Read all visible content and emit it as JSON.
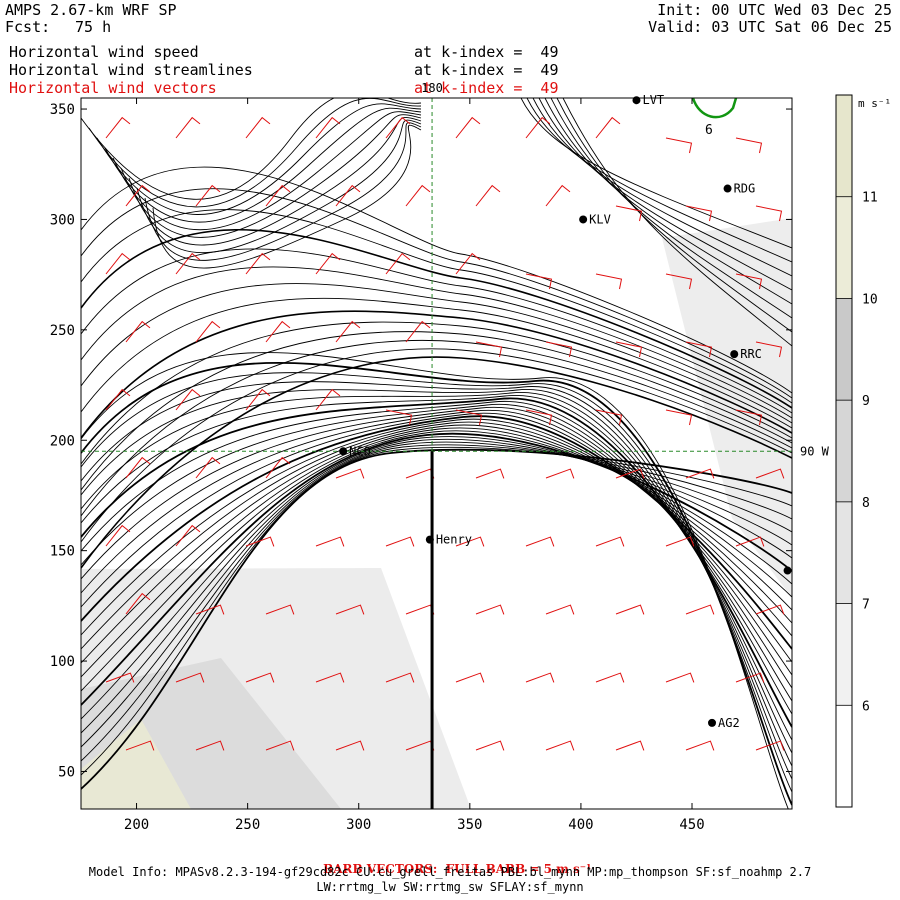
{
  "header": {
    "model": "AMPS 2.67-km WRF SP",
    "fcst_label": "Fcst:",
    "fcst_value": "75 h",
    "init": "Init: 00 UTC Wed 03 Dec 25",
    "valid": "Valid: 03 UTC Sat 06 Dec 25"
  },
  "fields": [
    {
      "name": "Horizontal wind speed",
      "level": "at k-index =  49",
      "color": "#000000"
    },
    {
      "name": "Horizontal wind streamlines",
      "level": "at k-index =  49",
      "color": "#000000"
    },
    {
      "name": "Horizontal wind vectors",
      "level": "at k-index =  49",
      "color": "#e01010"
    }
  ],
  "colorbar": {
    "units": "m s⁻¹",
    "ticks": [
      6,
      7,
      8,
      9,
      10,
      11
    ],
    "range": [
      5,
      12
    ],
    "colors": [
      "#ffffff",
      "#f1f1f1",
      "#e4e4e4",
      "#d6d6d6",
      "#c9c9c9",
      "#ececd8",
      "#e6e6cc"
    ]
  },
  "chart_data": {
    "type": "heatmap",
    "title": "Horizontal wind speed / streamlines / vectors at k-index = 49",
    "xlim": [
      175,
      495
    ],
    "ylim": [
      33,
      355
    ],
    "x_ticks": [
      200,
      250,
      300,
      350,
      400,
      450
    ],
    "y_ticks": [
      50,
      100,
      150,
      200,
      250,
      300,
      350
    ],
    "crosshair": {
      "x": 333,
      "y": 195,
      "x_label": "180",
      "y_label": "90 W"
    },
    "cross_section": {
      "x": 333,
      "y_from": 33,
      "y_to": 195
    },
    "contour_label": "6",
    "stations": [
      {
        "name": "LVT",
        "x": 425,
        "y": 354
      },
      {
        "name": "RDG",
        "x": 466,
        "y": 314
      },
      {
        "name": "KLV",
        "x": 401,
        "y": 300
      },
      {
        "name": "RRC",
        "x": 469,
        "y": 239
      },
      {
        "name": "NCO",
        "x": 293,
        "y": 195
      },
      {
        "name": "Henry",
        "x": 332,
        "y": 155
      },
      {
        "name": "",
        "x": 493,
        "y": 141
      },
      {
        "name": "AG2",
        "x": 459,
        "y": 72
      }
    ]
  },
  "footer": {
    "barb_title": "BARB VECTORS:  FULL BARB = 5 m s⁻¹",
    "model_info": "Model Info: MPASv8.2.3-194-gf29cd82c CU:cu_grell_freitas PBL:bl_mynn MP:mp_thompson SF:sf_noahmp 2.7",
    "physics": "LW:rrtmg_lw SW:rrtmg_sw SFLAY:sf_mynn"
  }
}
